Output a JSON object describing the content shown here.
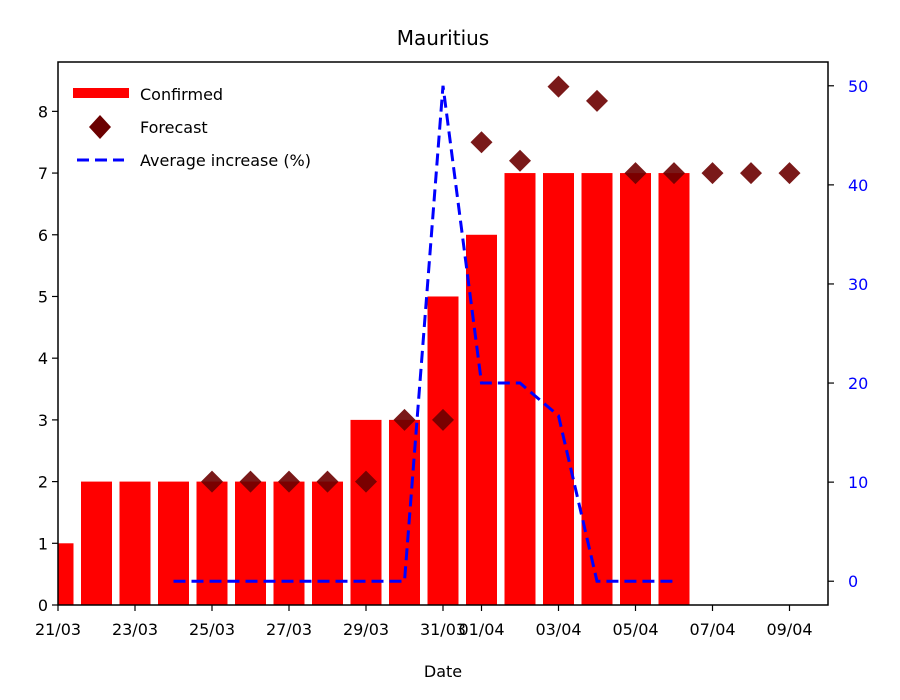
{
  "chart_data": {
    "type": "bar",
    "title": "Mauritius",
    "xlabel": "Date",
    "ylabel": "",
    "ylabel_right": "",
    "ylim": [
      0,
      8.8
    ],
    "ylim_right": [
      -2.4,
      52.4
    ],
    "yticks": [
      0,
      1,
      2,
      3,
      4,
      5,
      6,
      7,
      8
    ],
    "yticks_right": [
      0,
      10,
      20,
      30,
      40,
      50
    ],
    "x_dates": [
      "21/03",
      "22/03",
      "23/03",
      "24/03",
      "25/03",
      "26/03",
      "27/03",
      "28/03",
      "29/03",
      "30/03",
      "31/03",
      "01/04",
      "02/04",
      "03/04",
      "04/04",
      "05/04",
      "06/04",
      "07/04",
      "08/04",
      "09/04"
    ],
    "xtick_labels": [
      "21/03",
      "23/03",
      "25/03",
      "27/03",
      "29/03",
      "31/03",
      "01/04",
      "03/04",
      "05/04",
      "07/04",
      "09/04"
    ],
    "series": [
      {
        "name": "Confirmed",
        "kind": "bar",
        "color": "#ff0000",
        "x": [
          "21/03",
          "22/03",
          "23/03",
          "24/03",
          "25/03",
          "26/03",
          "27/03",
          "28/03",
          "29/03",
          "30/03",
          "31/03",
          "01/04",
          "02/04",
          "03/04",
          "04/04",
          "05/04",
          "06/04"
        ],
        "values": [
          1,
          2,
          2,
          2,
          2,
          2,
          2,
          2,
          3,
          3,
          5,
          6,
          7,
          7,
          7,
          7,
          7
        ]
      },
      {
        "name": "Forecast",
        "kind": "scatter",
        "marker": "diamond",
        "color": "#6b0000",
        "x": [
          "25/03",
          "26/03",
          "27/03",
          "28/03",
          "29/03",
          "30/03",
          "31/03",
          "01/04",
          "02/04",
          "03/04",
          "04/04",
          "05/04",
          "06/04",
          "07/04",
          "08/04",
          "09/04"
        ],
        "values": [
          2,
          2,
          2,
          2,
          2,
          3,
          3,
          7.5,
          7.2,
          8.4,
          8.17,
          7,
          7,
          7,
          7,
          7
        ]
      },
      {
        "name": "Average increase (%)",
        "kind": "line",
        "axis": "right",
        "style": "dashed",
        "color": "#0000ff",
        "x": [
          "24/03",
          "25/03",
          "26/03",
          "27/03",
          "28/03",
          "29/03",
          "30/03",
          "31/03",
          "01/04",
          "02/04",
          "03/04",
          "04/04",
          "05/04",
          "06/04"
        ],
        "values": [
          0,
          0,
          0,
          0,
          0,
          0,
          0,
          50,
          20,
          20,
          16.7,
          0,
          0,
          0
        ]
      }
    ],
    "legend": "top-left",
    "grid": false
  }
}
